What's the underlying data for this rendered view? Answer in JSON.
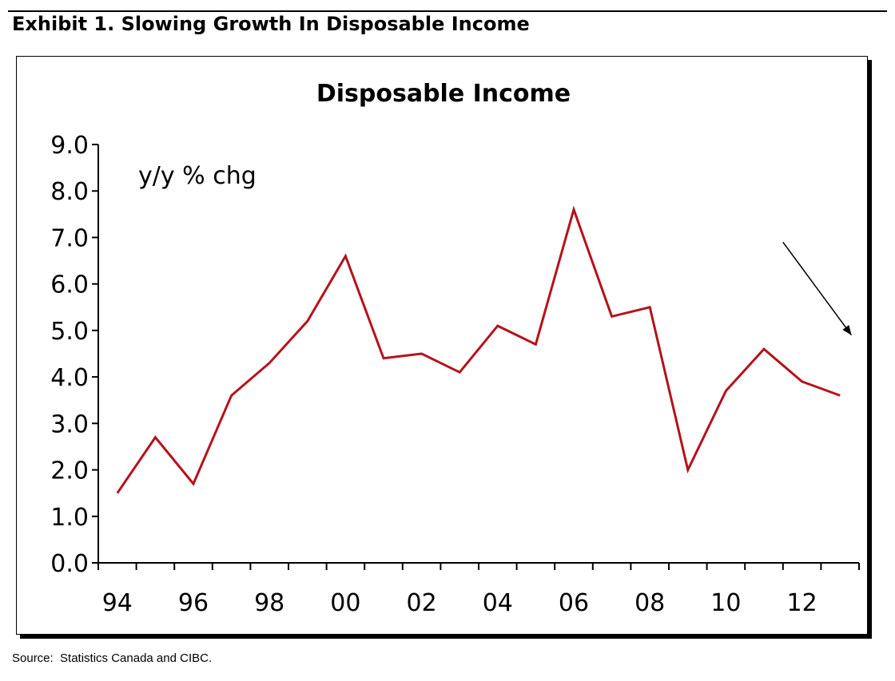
{
  "exhibit_title": "Exhibit 1. Slowing Growth In Disposable Income",
  "source": "Source:  Statistics Canada and CIBC.",
  "chart_data": {
    "type": "line",
    "title": "Disposable Income",
    "annotation": "y/y % chg",
    "xlabel": "",
    "ylabel": "y/y % chg",
    "x": [
      1994,
      1995,
      1996,
      1997,
      1998,
      1999,
      2000,
      2001,
      2002,
      2003,
      2004,
      2005,
      2006,
      2007,
      2008,
      2009,
      2010,
      2011,
      2012,
      2013
    ],
    "x_tick_labels": [
      "94",
      "96",
      "98",
      "00",
      "02",
      "04",
      "06",
      "08",
      "10",
      "12"
    ],
    "y_tick_labels": [
      "0.0",
      "1.0",
      "2.0",
      "3.0",
      "4.0",
      "5.0",
      "6.0",
      "7.0",
      "8.0",
      "9.0"
    ],
    "ylim": [
      0,
      9
    ],
    "series": [
      {
        "name": "Disposable Income",
        "color": "#b5121b",
        "values": [
          1.5,
          2.7,
          1.7,
          3.6,
          4.3,
          5.2,
          6.6,
          4.4,
          4.5,
          4.1,
          5.1,
          4.7,
          7.6,
          5.3,
          5.5,
          2.0,
          3.7,
          4.6,
          3.9,
          3.6
        ]
      }
    ],
    "trend_arrow": {
      "from": [
        2011.5,
        6.9
      ],
      "to": [
        2013.3,
        4.9
      ],
      "color": "#000000"
    },
    "grid": false,
    "legend": "none"
  }
}
